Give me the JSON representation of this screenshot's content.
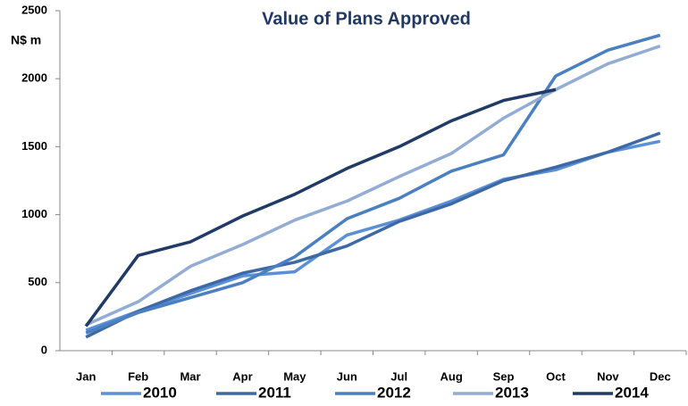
{
  "chart_data": {
    "type": "line",
    "title": "Value of Plans Approved",
    "y_label": "N$ m",
    "categories": [
      "Jan",
      "Feb",
      "Mar",
      "Apr",
      "May",
      "Jun",
      "Jul",
      "Aug",
      "Sep",
      "Oct",
      "Nov",
      "Dec"
    ],
    "ylim": [
      0,
      2500
    ],
    "yticks": [
      0,
      500,
      1000,
      1500,
      2000,
      2500
    ],
    "grid": false,
    "legend": "bottom",
    "series": [
      {
        "name": "2010",
        "color": "#5b8fd6",
        "values": [
          150,
          290,
          420,
          550,
          580,
          850,
          960,
          1100,
          1260,
          1330,
          1460,
          1540
        ]
      },
      {
        "name": "2011",
        "color": "#3d6aa6",
        "values": [
          100,
          290,
          440,
          570,
          650,
          770,
          950,
          1080,
          1250,
          1350,
          1460,
          1600
        ]
      },
      {
        "name": "2012",
        "color": "#4a7fc0",
        "values": [
          130,
          280,
          390,
          500,
          690,
          970,
          1120,
          1320,
          1440,
          2020,
          2210,
          2320
        ]
      },
      {
        "name": "2013",
        "color": "#93acd4",
        "values": [
          190,
          360,
          620,
          780,
          960,
          1100,
          1280,
          1450,
          1710,
          1920,
          2110,
          2240
        ]
      },
      {
        "name": "2014",
        "color": "#1f3b66",
        "values": [
          180,
          700,
          800,
          990,
          1150,
          1340,
          1500,
          1690,
          1840,
          1920,
          null,
          null
        ]
      }
    ]
  }
}
